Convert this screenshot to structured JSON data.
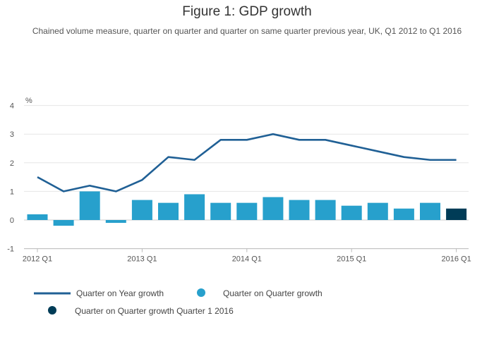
{
  "chart_data": {
    "type": "bar",
    "title": "Figure 1: GDP growth",
    "subtitle": "Chained volume measure, quarter on quarter and quarter on same quarter previous year, UK, Q1 2012 to Q1 2016",
    "unit_label": "%",
    "categories": [
      "2012 Q1",
      "2012 Q2",
      "2012 Q3",
      "2012 Q4",
      "2013 Q1",
      "2013 Q2",
      "2013 Q3",
      "2013 Q4",
      "2014 Q1",
      "2014 Q2",
      "2014 Q3",
      "2014 Q4",
      "2015 Q1",
      "2015 Q2",
      "2015 Q3",
      "2015 Q4",
      "2016 Q1"
    ],
    "x_tick_labels": [
      "2012 Q1",
      "2013 Q1",
      "2014 Q1",
      "2015 Q1",
      "2016 Q1"
    ],
    "ylim": [
      -1,
      4
    ],
    "y_ticks": [
      -1,
      0,
      1,
      2,
      3,
      4
    ],
    "grid": true,
    "legend_position": "bottom",
    "series": [
      {
        "name": "Quarter on Year growth",
        "type": "line",
        "color": "#206095",
        "values": [
          1.5,
          1.0,
          1.2,
          1.0,
          1.4,
          2.2,
          2.1,
          2.8,
          2.8,
          3.0,
          2.8,
          2.8,
          2.6,
          2.4,
          2.2,
          2.1,
          2.1
        ]
      },
      {
        "name": "Quarter on Quarter growth",
        "type": "bar",
        "color": "#27a0cc",
        "values": [
          0.2,
          -0.2,
          1.0,
          -0.1,
          0.7,
          0.6,
          0.9,
          0.6,
          0.6,
          0.8,
          0.7,
          0.7,
          0.5,
          0.6,
          0.4,
          0.6,
          null
        ]
      },
      {
        "name": "Quarter on Quarter growth Quarter 1 2016",
        "type": "bar",
        "color": "#003c57",
        "values": [
          null,
          null,
          null,
          null,
          null,
          null,
          null,
          null,
          null,
          null,
          null,
          null,
          null,
          null,
          null,
          null,
          0.4
        ]
      }
    ]
  }
}
